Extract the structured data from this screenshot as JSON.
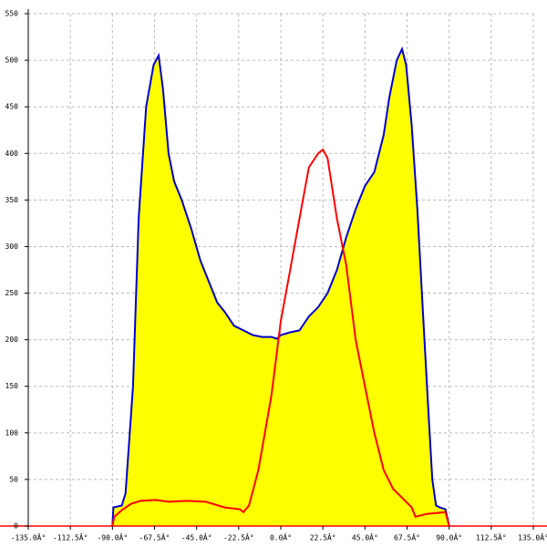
{
  "chart_data": {
    "type": "area",
    "xlim": [
      -135,
      135
    ],
    "ylim": [
      0,
      550
    ],
    "xticks": [
      {
        "value": -135,
        "label": "-135.0Â°"
      },
      {
        "value": -112.5,
        "label": "-112.5Â°"
      },
      {
        "value": -90,
        "label": "-90.0Â°"
      },
      {
        "value": -67.5,
        "label": "-67.5Â°"
      },
      {
        "value": -45,
        "label": "-45.0Â°"
      },
      {
        "value": -22.5,
        "label": "-22.5Â°"
      },
      {
        "value": 0,
        "label": "0.0Â°"
      },
      {
        "value": 22.5,
        "label": "22.5Â°"
      },
      {
        "value": 45,
        "label": "45.0Â°"
      },
      {
        "value": 67.5,
        "label": "67.5Â°"
      },
      {
        "value": 90,
        "label": "90.0Â°"
      },
      {
        "value": 112.5,
        "label": "112.5Â°"
      },
      {
        "value": 135,
        "label": "135.0Â°"
      }
    ],
    "yticks": [
      0,
      50,
      100,
      150,
      200,
      250,
      300,
      350,
      400,
      450,
      500,
      550
    ],
    "grid": true,
    "series": [
      {
        "color": "#0000cc",
        "fill": "#ffff00",
        "x": [
          -90,
          -89.5,
          -85,
          -83,
          -79,
          -76,
          -72,
          -68,
          -65.3,
          -63,
          -60,
          -57,
          -53,
          -48,
          -43,
          -38,
          -34,
          -30,
          -25,
          -20,
          -15,
          -10,
          -5,
          -2,
          0,
          5,
          10,
          15,
          20,
          25,
          30,
          35,
          40,
          45,
          50,
          55,
          58,
          62,
          64.8,
          67,
          70,
          73,
          76,
          79,
          81,
          83,
          85,
          88,
          90
        ],
        "values": [
          0,
          20,
          22,
          35,
          150,
          330,
          450,
          495,
          505,
          470,
          400,
          370,
          350,
          320,
          285,
          260,
          240,
          230,
          215,
          210,
          205,
          203,
          203,
          201,
          205,
          208,
          210,
          225,
          235,
          250,
          275,
          310,
          340,
          365,
          380,
          420,
          460,
          500,
          512,
          495,
          430,
          340,
          230,
          120,
          50,
          22,
          20,
          18,
          0
        ]
      },
      {
        "color": "#ff0000",
        "x": [
          -90,
          -89,
          -85,
          -80,
          -75,
          -67,
          -60,
          -50,
          -40,
          -30,
          -22,
          -20,
          -17,
          -12,
          -5,
          0,
          5,
          10,
          15,
          20,
          22.5,
          25,
          30,
          35,
          40,
          45,
          50,
          55,
          60,
          65,
          70,
          72,
          78,
          88,
          90
        ],
        "values": [
          0,
          10,
          17,
          24,
          27,
          28,
          26,
          27,
          26,
          20,
          18,
          15,
          22,
          60,
          140,
          220,
          275,
          330,
          385,
          400,
          404,
          395,
          330,
          280,
          200,
          150,
          100,
          60,
          40,
          30,
          20,
          10,
          13,
          15,
          0
        ]
      }
    ]
  }
}
